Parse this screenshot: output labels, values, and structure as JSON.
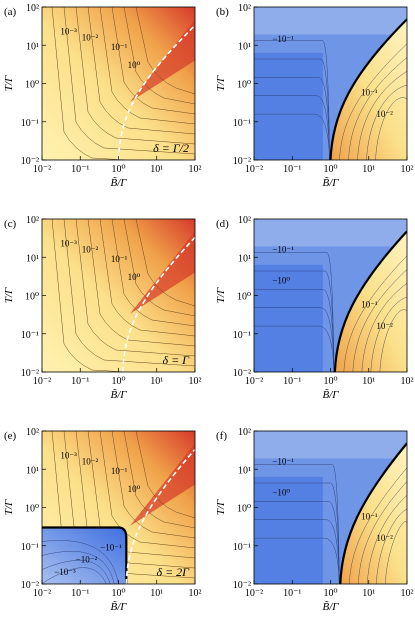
{
  "panels": [
    {
      "label": "(a)",
      "kind": "positive",
      "boundary_x": null,
      "guide_x": 1.0,
      "delta_text": "δ = Γ/2",
      "contour_labels": [
        "10⁻³",
        "10⁻²",
        "10⁻¹",
        "10⁰"
      ]
    },
    {
      "label": "(b)",
      "kind": "negative-right",
      "boundary_x": 1.0,
      "guide_x": null,
      "delta_text": "",
      "contour_labels": [
        "−10⁻¹",
        "10⁻¹",
        "10⁻²"
      ]
    },
    {
      "label": "(c)",
      "kind": "positive",
      "boundary_x": null,
      "guide_x": 1.3,
      "delta_text": "δ = Γ",
      "contour_labels": [
        "10⁻³",
        "10⁻²",
        "10⁻¹",
        "10⁰"
      ]
    },
    {
      "label": "(d)",
      "kind": "negative-right",
      "boundary_x": 1.3,
      "guide_x": null,
      "delta_text": "",
      "contour_labels": [
        "−10⁻¹",
        "−10⁰",
        "10⁻¹",
        "10⁻²"
      ]
    },
    {
      "label": "(e)",
      "kind": "positive-negcorner",
      "boundary_x": 1.6,
      "guide_x": 1.6,
      "delta_text": "δ = 2Γ",
      "contour_labels": [
        "10⁻³",
        "10⁻²",
        "10⁻¹",
        "10⁰",
        "−10⁻¹",
        "−10⁻²",
        "−10⁻³"
      ]
    },
    {
      "label": "(f)",
      "kind": "negative-right",
      "boundary_x": 1.8,
      "guide_x": null,
      "delta_text": "",
      "contour_labels": [
        "−10⁻¹",
        "−10⁰",
        "10⁻¹",
        "10⁻²"
      ]
    }
  ],
  "axes": {
    "xlabel": "B̃/Γ",
    "ylabel": "T/Γ",
    "xticks": [
      "10⁻²",
      "10⁻¹",
      "10⁰",
      "10¹",
      "10²"
    ],
    "yticks": [
      "10²",
      "10¹",
      "10⁰",
      "10⁻¹",
      "10⁻²"
    ]
  },
  "colors": {
    "warm_low": "#fbe08a",
    "warm_mid": "#f0a24a",
    "warm_high": "#d63a2a",
    "cool_low": "#a9c0ef",
    "cool_mid": "#6f95e6",
    "cool_high": "#3f6fe0",
    "boundary": "#000000",
    "guide": "#ffffff"
  }
}
